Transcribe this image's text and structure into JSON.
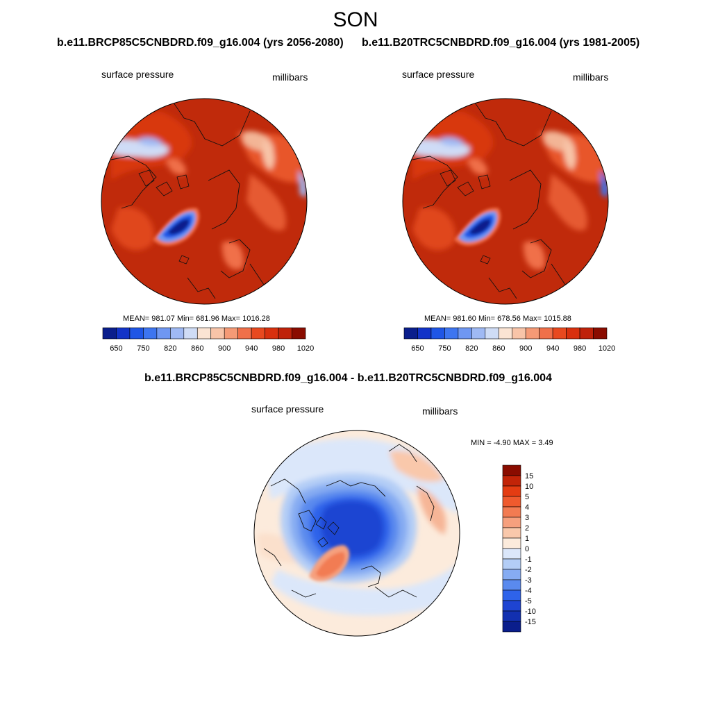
{
  "season": "SON",
  "panels": [
    {
      "case_title": "b.e11.BRCP85C5CNBDRD.f09_g16.004 (yrs 2056-2080)",
      "left_label": "surface pressure",
      "right_label": "millibars",
      "stats": "MEAN= 981.07  Min= 681.96  Max= 1016.28"
    },
    {
      "case_title": "b.e11.B20TRC5CNBDRD.f09_g16.004 (yrs 1981-2005)",
      "left_label": "surface pressure",
      "right_label": "millibars",
      "stats": "MEAN= 981.60  Min= 678.56  Max= 1015.88"
    }
  ],
  "diff": {
    "title": "b.e11.BRCP85C5CNBDRD.f09_g16.004 - b.e11.B20TRC5CNBDRD.f09_g16.004",
    "left_label": "surface pressure",
    "right_label": "millibars",
    "stats": "MIN =  -4.90 MAX =   3.49"
  },
  "colorbar_abs": {
    "tick_labels": [
      "650",
      "750",
      "820",
      "860",
      "900",
      "940",
      "980",
      "1020"
    ],
    "colors": [
      "#0a1e8c",
      "#1233c8",
      "#1f56e6",
      "#3d75f0",
      "#6f97f2",
      "#9fb9f4",
      "#cfdcf6",
      "#fbe4d3",
      "#f8c4a8",
      "#f59a76",
      "#f0704a",
      "#e8491f",
      "#d8300e",
      "#bf220a",
      "#8a0c00"
    ]
  },
  "colorbar_diff": {
    "tick_labels": [
      "15",
      "10",
      "5",
      "4",
      "3",
      "2",
      "1",
      "0",
      "-1",
      "-2",
      "-3",
      "-4",
      "-5",
      "-10",
      "-15"
    ],
    "colors": [
      "#8a0c00",
      "#c22408",
      "#e43c12",
      "#ef5a2e",
      "#f27b52",
      "#f6a07e",
      "#f9c8ab",
      "#fcebdc",
      "#dbe7fa",
      "#b3cdf6",
      "#86acf2",
      "#5a8aee",
      "#2e63ea",
      "#1e44d2",
      "#1230b0",
      "#0a1e8c"
    ]
  }
}
